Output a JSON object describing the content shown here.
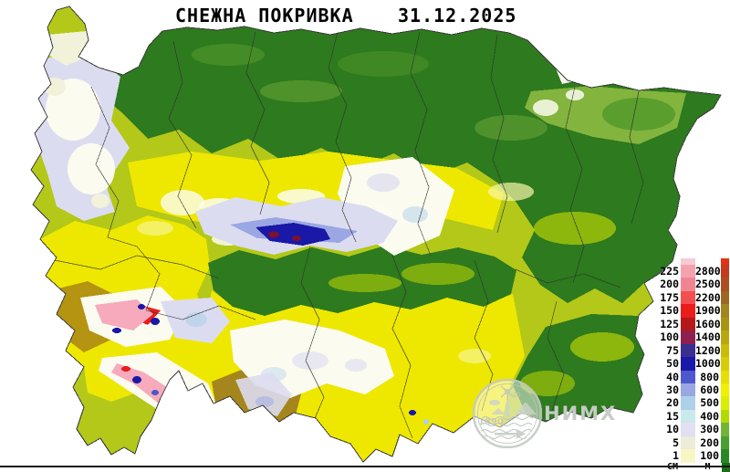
{
  "header": {
    "title": "СНЕЖНА ПОКРИВКА",
    "date": "31.12.2025"
  },
  "legend": {
    "unit_cm": "CM",
    "unit_m": "M",
    "cm_cap_color": "#f8c9d6",
    "m_cap_color": "#e63214",
    "m_bottom_color": "#1c6c1c",
    "rows": [
      {
        "cm": "225",
        "m": "2800",
        "cm_color": "#f4a2b0",
        "m_color": "#c53a1e"
      },
      {
        "cm": "200",
        "m": "2500",
        "cm_color": "#f08592",
        "m_color": "#ab4f22"
      },
      {
        "cm": "175",
        "m": "2200",
        "cm_color": "#f25050",
        "m_color": "#9c6624"
      },
      {
        "cm": "150",
        "m": "1900",
        "cm_color": "#ea1c1c",
        "m_color": "#a0861e"
      },
      {
        "cm": "125",
        "m": "1600",
        "cm_color": "#b41818",
        "m_color": "#a89413"
      },
      {
        "cm": "100",
        "m": "1400",
        "cm_color": "#8e2050",
        "m_color": "#b8a810"
      },
      {
        "cm": "75",
        "m": "1200",
        "cm_color": "#37308f",
        "m_color": "#cabc08"
      },
      {
        "cm": "50",
        "m": "1000",
        "cm_color": "#1a18a6",
        "m_color": "#d8cc04"
      },
      {
        "cm": "40",
        "m": "800",
        "cm_color": "#4d58cd",
        "m_color": "#e6e000"
      },
      {
        "cm": "30",
        "m": "600",
        "cm_color": "#9ba7e3",
        "m_color": "#f0f000"
      },
      {
        "cm": "20",
        "m": "500",
        "cm_color": "#aed0ea",
        "m_color": "#dcee00"
      },
      {
        "cm": "15",
        "m": "400",
        "cm_color": "#c9e9ea",
        "m_color": "#b2dc00"
      },
      {
        "cm": "10",
        "m": "300",
        "cm_color": "#e0e0f2",
        "m_color": "#72b43a"
      },
      {
        "cm": "5",
        "m": "200",
        "cm_color": "#ececd8",
        "m_color": "#48a030"
      },
      {
        "cm": "1",
        "m": "100",
        "cm_color": "#f7f7c6",
        "m_color": "#2c8628"
      }
    ]
  },
  "watermark": {
    "name": "НИМХ",
    "year": "1890"
  },
  "palette": {
    "base": "#b3c818",
    "darkGreen": "#2e7a1e",
    "green": "#5a9e2e",
    "lightGreen": "#83b43e",
    "yellowGreen": "#cde000",
    "yellow": "#eee800",
    "paleYellow": "#f8f6a8",
    "olive": "#b49410",
    "darkOlive": "#a5861c",
    "snowWhite": "#fbfbf0",
    "snowCream": "#f2f2da",
    "snowLavender": "#dcdcf0",
    "snowBlue": "#aed0ea",
    "snowPeriwinkle": "#9ba7e3",
    "snowMedBlue": "#4d58cd",
    "snowNavy": "#1a18a6",
    "snowPink": "#f6aabb",
    "snowBrightRed": "#e81d1d",
    "snowMaroon": "#7c1030",
    "boundary": "#2f2f2f",
    "outline": "#3a3a3a",
    "logoGray": "#c4cac4",
    "logoFill": "#d2d8d2"
  }
}
